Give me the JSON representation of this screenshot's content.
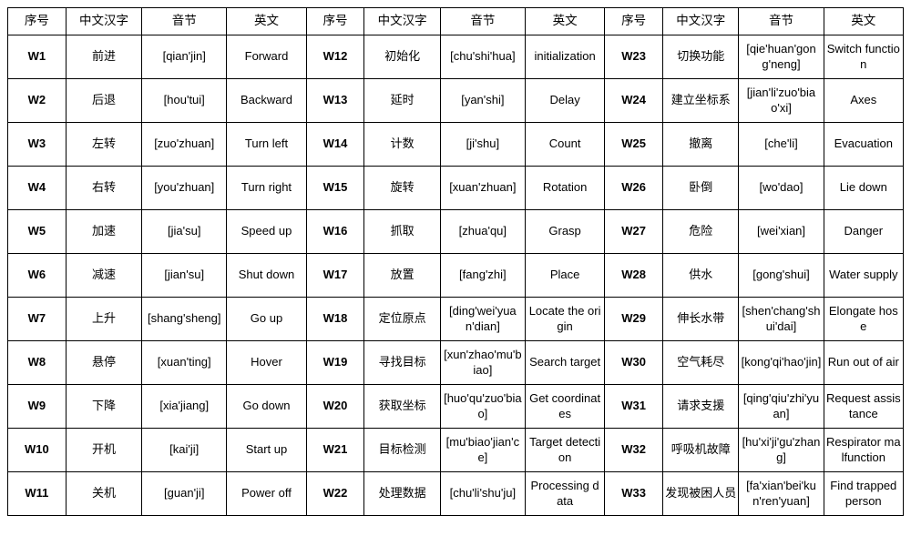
{
  "headers": {
    "seq": "序号",
    "hanzi": "中文汉字",
    "pinyin": "音节",
    "en": "英文"
  },
  "rows": [
    [
      {
        "seq": "W1",
        "hanzi": "前进",
        "pinyin": "[qian'jin]",
        "en": "Forward"
      },
      {
        "seq": "W12",
        "hanzi": "初始化",
        "pinyin": "[chu'shi'hua]",
        "en": "initialization"
      },
      {
        "seq": "W23",
        "hanzi": "切换功能",
        "pinyin": "[qie'huan'gong'neng]",
        "en": "Switch function"
      }
    ],
    [
      {
        "seq": "W2",
        "hanzi": "后退",
        "pinyin": "[hou'tui]",
        "en": "Backward"
      },
      {
        "seq": "W13",
        "hanzi": "延时",
        "pinyin": "[yan'shi]",
        "en": "Delay"
      },
      {
        "seq": "W24",
        "hanzi": "建立坐标系",
        "pinyin": "[jian'li'zuo'biao'xi]",
        "en": "Axes"
      }
    ],
    [
      {
        "seq": "W3",
        "hanzi": "左转",
        "pinyin": "[zuo'zhuan]",
        "en": "Turn left"
      },
      {
        "seq": "W14",
        "hanzi": "计数",
        "pinyin": "[ji'shu]",
        "en": "Count"
      },
      {
        "seq": "W25",
        "hanzi": "撤离",
        "pinyin": "[che'li]",
        "en": "Evacuation"
      }
    ],
    [
      {
        "seq": "W4",
        "hanzi": "右转",
        "pinyin": "[you'zhuan]",
        "en": "Turn right"
      },
      {
        "seq": "W15",
        "hanzi": "旋转",
        "pinyin": "[xuan'zhuan]",
        "en": "Rotation"
      },
      {
        "seq": "W26",
        "hanzi": "卧倒",
        "pinyin": "[wo'dao]",
        "en": "Lie down"
      }
    ],
    [
      {
        "seq": "W5",
        "hanzi": "加速",
        "pinyin": "[jia'su]",
        "en": "Speed up"
      },
      {
        "seq": "W16",
        "hanzi": "抓取",
        "pinyin": "[zhua'qu]",
        "en": "Grasp"
      },
      {
        "seq": "W27",
        "hanzi": "危险",
        "pinyin": "[wei'xian]",
        "en": "Danger"
      }
    ],
    [
      {
        "seq": "W6",
        "hanzi": "减速",
        "pinyin": "[jian'su]",
        "en": "Shut down"
      },
      {
        "seq": "W17",
        "hanzi": "放置",
        "pinyin": "[fang'zhi]",
        "en": "Place"
      },
      {
        "seq": "W28",
        "hanzi": "供水",
        "pinyin": "[gong'shui]",
        "en": "Water supply"
      }
    ],
    [
      {
        "seq": "W7",
        "hanzi": "上升",
        "pinyin": "[shang'sheng]",
        "en": "Go up"
      },
      {
        "seq": "W18",
        "hanzi": "定位原点",
        "pinyin": "[ding'wei'yuan'dian]",
        "en": "Locate the origin"
      },
      {
        "seq": "W29",
        "hanzi": "伸长水带",
        "pinyin": "[shen'chang'shui'dai]",
        "en": "Elongate hose"
      }
    ],
    [
      {
        "seq": "W8",
        "hanzi": "悬停",
        "pinyin": "[xuan'ting]",
        "en": "Hover"
      },
      {
        "seq": "W19",
        "hanzi": "寻找目标",
        "pinyin": "[xun'zhao'mu'biao]",
        "en": "Search target"
      },
      {
        "seq": "W30",
        "hanzi": "空气耗尽",
        "pinyin": "[kong'qi'hao'jin]",
        "en": "Run out of air"
      }
    ],
    [
      {
        "seq": "W9",
        "hanzi": "下降",
        "pinyin": "[xia'jiang]",
        "en": "Go down"
      },
      {
        "seq": "W20",
        "hanzi": "获取坐标",
        "pinyin": "[huo'qu'zuo'biao]",
        "en": "Get coordinates"
      },
      {
        "seq": "W31",
        "hanzi": "请求支援",
        "pinyin": "[qing'qiu'zhi'yuan]",
        "en": "Request assistance"
      }
    ],
    [
      {
        "seq": "W10",
        "hanzi": "开机",
        "pinyin": "[kai'ji]",
        "en": "Start up"
      },
      {
        "seq": "W21",
        "hanzi": "目标检测",
        "pinyin": "[mu'biao'jian'ce]",
        "en": "Target detection"
      },
      {
        "seq": "W32",
        "hanzi": "呼吸机故障",
        "pinyin": "[hu'xi'ji'gu'zhang]",
        "en": "Respirator malfunction"
      }
    ],
    [
      {
        "seq": "W11",
        "hanzi": "关机",
        "pinyin": "[guan'ji]",
        "en": "Power off"
      },
      {
        "seq": "W22",
        "hanzi": "处理数据",
        "pinyin": "[chu'li'shu'ju]",
        "en": "Processing data"
      },
      {
        "seq": "W33",
        "hanzi": "发现被困人员",
        "pinyin": "[fa'xian'bei'kun'ren'yuan]",
        "en": "Find trapped person"
      }
    ]
  ],
  "style": {
    "border_color": "#000000",
    "background_color": "#ffffff",
    "font_size_cell": 13,
    "font_size_header": 13.5,
    "num_col_groups": 3,
    "cols_per_group": 4
  }
}
